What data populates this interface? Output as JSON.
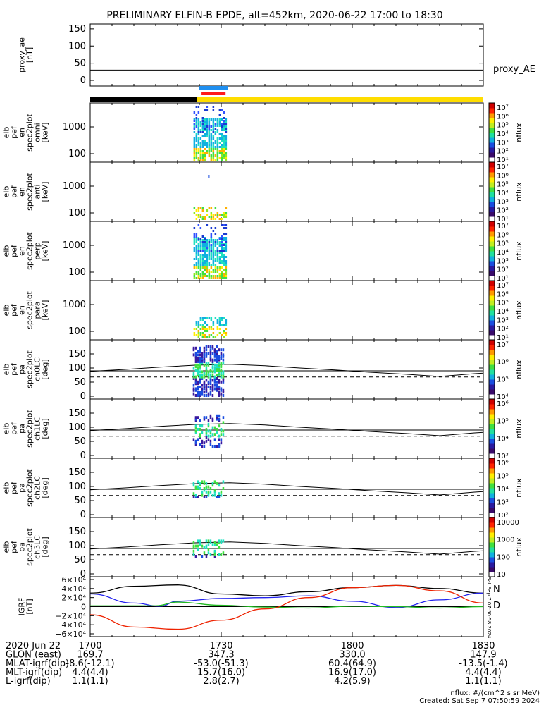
{
  "title": "PRELIMINARY ELFIN-B EPDE, alt=452km, 2020-06-22 17:00 to 18:30",
  "colors": {
    "ae_line": "#000000",
    "state_black": "#000000",
    "state_yellow": "#ffdd00",
    "sci_blue": "#1f8ff0",
    "sci_red": "#ff1a1a",
    "igrf_n": "#2222ee",
    "igrf_d": "#ee2200",
    "igrf_e": "#22bb22"
  },
  "ae_panel": {
    "ylabel_lines": [
      "proxy_ae",
      "[nT]"
    ],
    "yticks": [
      "0",
      "50",
      "100",
      "150"
    ],
    "series_label": "proxy_AE",
    "value": 30,
    "ylim": [
      0,
      160
    ]
  },
  "spec_panels": [
    {
      "ylabel_lines": [
        "elb",
        "pef",
        "en",
        "spec2plot",
        "omni",
        "[keV]"
      ],
      "yticks": [
        "100",
        "1000"
      ],
      "cbar_label": "nflux",
      "cbar_ticks": [
        "10⁷",
        "10⁶",
        "10⁵",
        "10⁴",
        "10³",
        "10²",
        "10¹"
      ]
    },
    {
      "ylabel_lines": [
        "elb",
        "pef",
        "en",
        "spec2plot",
        "anti",
        "[keV]"
      ],
      "yticks": [
        "100",
        "1000"
      ],
      "cbar_label": "nflux",
      "cbar_ticks": [
        "10⁷",
        "10⁶",
        "10⁵",
        "10⁴",
        "10³",
        "10²",
        "10¹"
      ]
    },
    {
      "ylabel_lines": [
        "elb",
        "pef",
        "en",
        "spec2plot",
        "perp",
        "[keV]"
      ],
      "yticks": [
        "100",
        "1000"
      ],
      "cbar_label": "nflux",
      "cbar_ticks": [
        "10⁷",
        "10⁶",
        "10⁵",
        "10⁴",
        "10³",
        "10²",
        "10¹"
      ]
    },
    {
      "ylabel_lines": [
        "elb",
        "pef",
        "en",
        "spec2plot",
        "para",
        "[keV]"
      ],
      "yticks": [
        "100",
        "1000"
      ],
      "cbar_label": "nflux",
      "cbar_ticks": [
        "10⁷",
        "10⁶",
        "10⁵",
        "10⁴",
        "10³",
        "10²",
        "10¹"
      ]
    }
  ],
  "pa_panels": [
    {
      "ylabel_lines": [
        "elb",
        "pef",
        "pa",
        "spec2plot",
        "ch0LC",
        "[deg]"
      ],
      "yticks": [
        "0",
        "50",
        "100",
        "150"
      ],
      "cbar_label": "nflux",
      "cbar_ticks": [
        "10⁷",
        "10⁶",
        "10⁵",
        "10⁴"
      ]
    },
    {
      "ylabel_lines": [
        "elb",
        "pef",
        "pa",
        "spec2plot",
        "ch1LC",
        "[deg]"
      ],
      "yticks": [
        "0",
        "50",
        "100",
        "150"
      ],
      "cbar_label": "nflux",
      "cbar_ticks": [
        "10⁶",
        "10⁵",
        "10⁴",
        "10³"
      ]
    },
    {
      "ylabel_lines": [
        "elb",
        "pef",
        "pa",
        "spec2plot",
        "ch2LC",
        "[deg]"
      ],
      "yticks": [
        "0",
        "50",
        "100",
        "150"
      ],
      "cbar_label": "nflux",
      "cbar_ticks": [
        "10⁶",
        "10⁵",
        "10⁴",
        "10³",
        "10²"
      ]
    },
    {
      "ylabel_lines": [
        "elb",
        "pef",
        "pa",
        "spec2plot",
        "ch3LC",
        "[deg]"
      ],
      "yticks": [
        "0",
        "50",
        "100",
        "150"
      ],
      "cbar_label": "nflux",
      "cbar_ticks": [
        "10000",
        "1000",
        "100",
        "10"
      ]
    }
  ],
  "igrf_panel": {
    "ylabel_lines": [
      "IGRF",
      "[nT]"
    ],
    "yticks": [
      "−6×10⁴",
      "−4×10⁴",
      "−2×10⁴",
      "0",
      "2×10⁴",
      "4×10⁴",
      "6×10⁴"
    ],
    "legend": [
      {
        "label": "N",
        "color": "#2222ee"
      },
      {
        "label": "D",
        "color": "#ee2200"
      }
    ],
    "sidebar_text": "Sat Sep  7 07:50:58 2024"
  },
  "chart_data": {
    "type": "line",
    "title": "PRELIMINARY ELFIN-B EPDE, alt=452km, 2020-06-22 17:00 to 18:30",
    "x_range": [
      "17:00",
      "18:30"
    ],
    "ae_series": {
      "name": "proxy_AE",
      "x_min": [
        0,
        90
      ],
      "values": [
        30,
        30
      ]
    },
    "loss_cone_solid_deg": {
      "x_min": [
        0,
        8,
        16,
        24,
        32,
        40,
        48,
        56,
        64,
        72,
        80,
        88,
        90
      ],
      "values": [
        88,
        95,
        103,
        110,
        113,
        108,
        100,
        93,
        85,
        78,
        70,
        80,
        82
      ]
    },
    "antiloss_dashed_deg": {
      "x_min": [
        0,
        90
      ],
      "values": [
        68,
        68
      ]
    },
    "igrf_series": [
      {
        "name": "black",
        "x_min": [
          0,
          10,
          20,
          30,
          40,
          50,
          60,
          70,
          80,
          90
        ],
        "values": [
          30000,
          45000,
          48000,
          28000,
          24000,
          33000,
          42000,
          47000,
          40000,
          30000
        ]
      },
      {
        "name": "N",
        "x_min": [
          0,
          10,
          16,
          20,
          30,
          40,
          50,
          60,
          70,
          80,
          90
        ],
        "values": [
          28000,
          8000,
          1000,
          12000,
          18000,
          20000,
          24000,
          12000,
          -2000,
          15000,
          30000
        ]
      },
      {
        "name": "E",
        "x_min": [
          0,
          15,
          20,
          30,
          40,
          50,
          60,
          70,
          80,
          90
        ],
        "values": [
          2000,
          2000,
          10000,
          3000,
          -1000,
          -3000,
          1000,
          0,
          -3000,
          0
        ]
      },
      {
        "name": "D",
        "x_min": [
          0,
          10,
          20,
          30,
          40,
          50,
          60,
          70,
          80,
          90
        ],
        "values": [
          -18000,
          -45000,
          -50000,
          -30000,
          -5000,
          20000,
          42000,
          47000,
          35000,
          8000
        ]
      }
    ],
    "spectral_burst_window_min": [
      23,
      30
    ]
  },
  "footer": {
    "rows": [
      {
        "label": "2020 Jun 22",
        "values": [
          "1700",
          "1730",
          "1800",
          "1830"
        ]
      },
      {
        "label": "GLON (east)",
        "values": [
          "169.7",
          "347.3",
          "330.0",
          "147.9"
        ]
      },
      {
        "label": "MLAT-igrf(dip)",
        "values": [
          "-8.6(-12.1)",
          "-53.0(-51.3)",
          "60.4(64.9)",
          "-13.5(-1.4)"
        ]
      },
      {
        "label": "MLT-igrf(dip)",
        "values": [
          "4.4(4.4)",
          "15.7(16.0)",
          "16.9(17.0)",
          "4.4(4.4)"
        ]
      },
      {
        "label": "L-igrf(dip)",
        "values": [
          "1.1(1.1)",
          "2.8(2.7)",
          "4.2(5.9)",
          "1.1(1.1)"
        ]
      }
    ],
    "units_note": "nflux: #/(cm^2 s sr MeV)",
    "created": "Created: Sat Sep  7 07:50:59 2024"
  }
}
